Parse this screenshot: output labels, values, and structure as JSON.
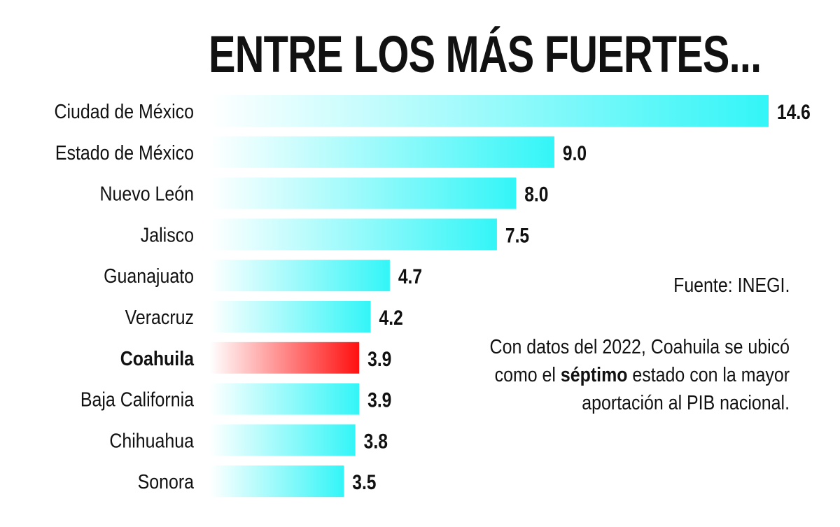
{
  "chart_data": {
    "type": "bar",
    "orientation": "horizontal",
    "title": "ENTRE LOS MÁS FUERTES...",
    "categories": [
      "Ciudad de México",
      "Estado de México",
      "Nuevo León",
      "Jalisco",
      "Guanajuato",
      "Veracruz",
      "Coahuila",
      "Baja California",
      "Chihuahua",
      "Sonora"
    ],
    "values": [
      14.6,
      9.0,
      8.0,
      7.5,
      4.7,
      4.2,
      3.9,
      3.9,
      3.8,
      3.5
    ],
    "value_labels": [
      "14.6",
      "9.0",
      "8.0",
      "7.5",
      "4.7",
      "4.2",
      "3.9",
      "3.9",
      "3.8",
      "3.5"
    ],
    "highlight": "Coahuila",
    "colors": {
      "default": "#33f5f7",
      "highlight": "#ff1010"
    },
    "grid": false,
    "xlabel": "",
    "ylabel": ""
  },
  "source": "Fuente: INEGI.",
  "caption": {
    "before": "Con datos del 2022, Coahuila se ubicó como el ",
    "bold": "séptimo",
    "after": " estado con la mayor aportación al PIB nacional."
  }
}
